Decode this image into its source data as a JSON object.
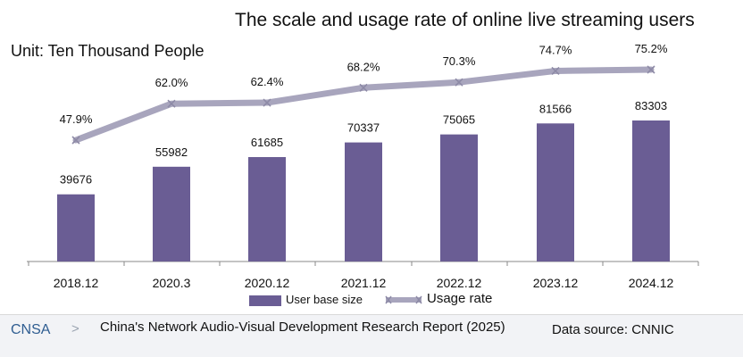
{
  "chart_data": {
    "type": "bar+line",
    "title": "The scale and usage rate of online live streaming users",
    "unit": "Unit: Ten Thousand People",
    "categories": [
      "2018.12",
      "2020.3",
      "2020.12",
      "2021.12",
      "2022.12",
      "2023.12",
      "2024.12"
    ],
    "series": [
      {
        "name": "User base size",
        "type": "bar",
        "values": [
          39676,
          55982,
          61685,
          70337,
          75065,
          81566,
          83303
        ]
      },
      {
        "name": "Usage rate",
        "type": "line",
        "values": [
          47.9,
          62.0,
          62.4,
          68.2,
          70.3,
          74.7,
          75.2
        ]
      }
    ],
    "bar_labels": [
      "39676",
      "55982",
      "61685",
      "70337",
      "75065",
      "81566",
      "83303"
    ],
    "rate_labels": [
      "47.9%",
      "62.0%",
      "62.4%",
      "68.2%",
      "70.3%",
      "74.7%",
      "75.2%"
    ],
    "legend": {
      "bar_label": "User base size",
      "line_label": "Usage rate"
    },
    "colors": {
      "bar": "#6a5d94",
      "line": "#a8a5bd",
      "axis": "#8a8a8a"
    }
  },
  "footer": {
    "brand": "CNSA",
    "chevron": ">",
    "report": "China's Network Audio-Visual Development Research Report (2025)",
    "source": "Data source: CNNIC"
  }
}
